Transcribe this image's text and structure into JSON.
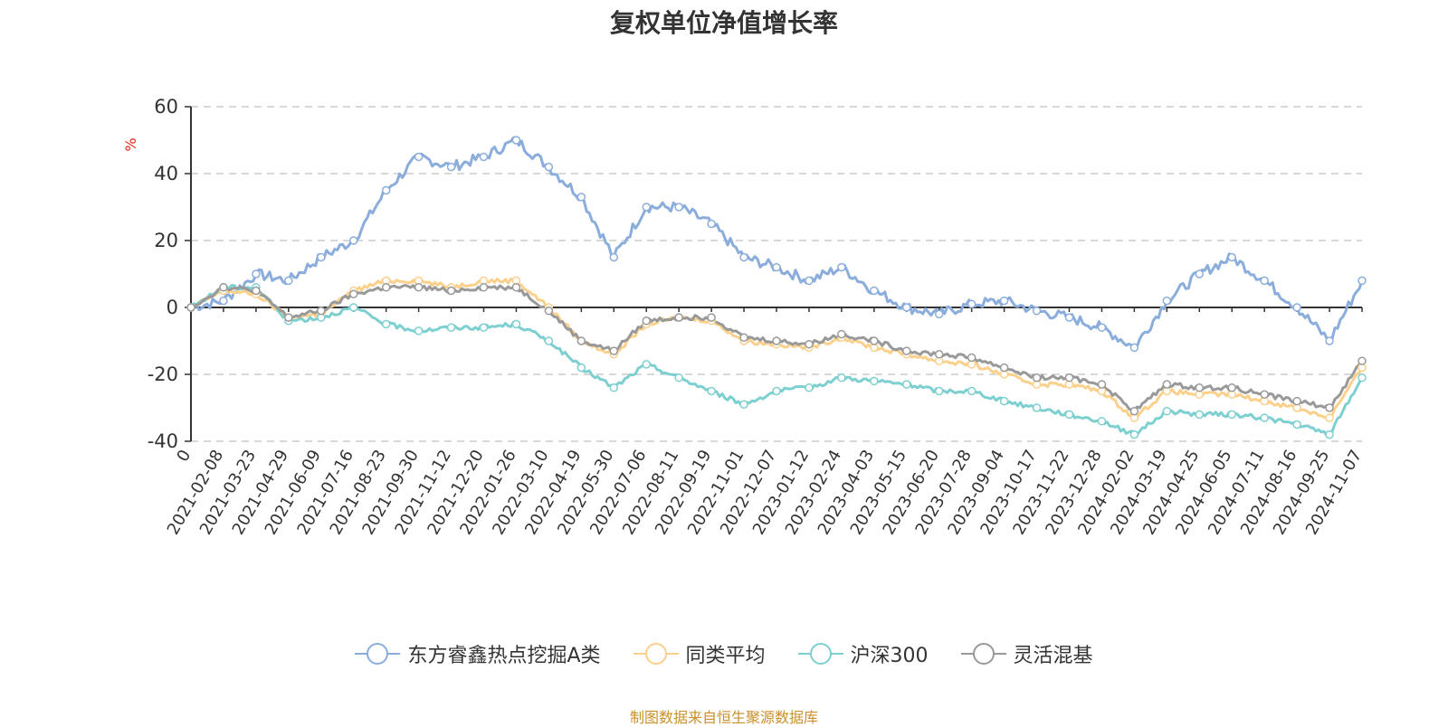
{
  "chart_data": {
    "type": "line",
    "title": "复权单位净值增长率",
    "ylabel": "%",
    "ylim": [
      -40,
      60
    ],
    "yticks": [
      60,
      40,
      20,
      0,
      -20,
      -40
    ],
    "grid": true,
    "legend_position": "bottom",
    "x": [
      "0",
      "2021-02-08",
      "2021-03-23",
      "2021-04-29",
      "2021-06-09",
      "2021-07-16",
      "2021-08-23",
      "2021-09-30",
      "2021-11-12",
      "2021-12-20",
      "2022-01-26",
      "2022-03-10",
      "2022-04-19",
      "2022-05-30",
      "2022-07-06",
      "2022-08-11",
      "2022-09-19",
      "2022-11-01",
      "2022-12-07",
      "2023-01-12",
      "2023-02-24",
      "2023-04-03",
      "2023-05-15",
      "2023-06-20",
      "2023-07-28",
      "2023-09-04",
      "2023-10-17",
      "2023-11-22",
      "2023-12-28",
      "2024-02-02",
      "2024-03-19",
      "2024-04-25",
      "2024-06-05",
      "2024-07-11",
      "2024-08-16",
      "2024-09-25",
      "2024-11-07"
    ],
    "series": [
      {
        "name": "东方睿鑫热点挖掘A类",
        "color": "#8aaddc",
        "values": [
          0,
          2,
          10,
          8,
          15,
          20,
          35,
          45,
          42,
          45,
          50,
          42,
          33,
          15,
          30,
          30,
          25,
          15,
          12,
          8,
          12,
          5,
          0,
          -2,
          1,
          2,
          -1,
          -3,
          -6,
          -12,
          2,
          10,
          15,
          8,
          0,
          -10,
          8
        ]
      },
      {
        "name": "同类平均",
        "color": "#fbd08b",
        "values": [
          0,
          5,
          4,
          -3,
          -2,
          5,
          8,
          8,
          6,
          8,
          8,
          0,
          -10,
          -14,
          -5,
          -3,
          -4,
          -10,
          -11,
          -12,
          -9,
          -12,
          -14,
          -16,
          -17,
          -20,
          -23,
          -23,
          -25,
          -33,
          -25,
          -26,
          -26,
          -28,
          -30,
          -33,
          -18
        ]
      },
      {
        "name": "沪深300",
        "color": "#7dcfd0",
        "values": [
          0,
          6,
          6,
          -4,
          -3,
          0,
          -5,
          -7,
          -6,
          -6,
          -5,
          -10,
          -18,
          -24,
          -17,
          -21,
          -25,
          -29,
          -25,
          -24,
          -21,
          -22,
          -23,
          -25,
          -25,
          -28,
          -30,
          -32,
          -34,
          -38,
          -31,
          -32,
          -32,
          -33,
          -35,
          -38,
          -21
        ]
      },
      {
        "name": "灵活混基",
        "color": "#999999",
        "values": [
          0,
          6,
          5,
          -3,
          -1,
          4,
          6,
          6,
          5,
          6,
          6,
          -1,
          -10,
          -13,
          -4,
          -3,
          -3,
          -9,
          -10,
          -11,
          -8,
          -10,
          -13,
          -14,
          -15,
          -18,
          -21,
          -21,
          -23,
          -31,
          -23,
          -24,
          -24,
          -26,
          -28,
          -30,
          -16
        ]
      }
    ]
  },
  "source_note": "制图数据来自恒生聚源数据库"
}
